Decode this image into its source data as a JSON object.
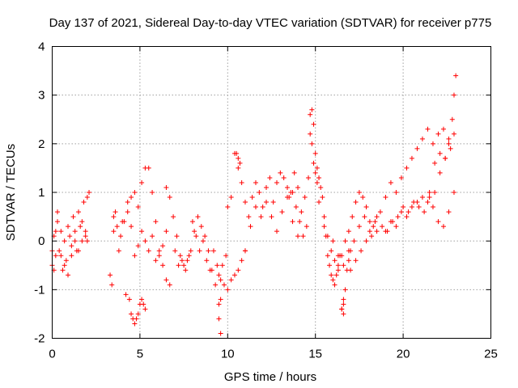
{
  "chart_data": {
    "type": "scatter",
    "title": "Day 137 of 2021, Sidereal Day-to-day VTEC variation (SDTVAR) for receiver p775",
    "xlabel": "GPS time / hours",
    "ylabel": "SDTVAR / TECUs",
    "xlim": [
      0,
      25
    ],
    "ylim": [
      -2,
      4
    ],
    "xticks": [
      0,
      5,
      10,
      15,
      20,
      25
    ],
    "yticks": [
      -2,
      -1,
      0,
      1,
      2,
      3,
      4
    ],
    "grid": true,
    "marker": "plus",
    "color": "#ff0000",
    "series": [
      {
        "name": "SDTVAR",
        "x": [
          0.0,
          0.1,
          0.2,
          0.3,
          0.4,
          0.5,
          0.6,
          0.7,
          0.8,
          0.9,
          1.0,
          1.1,
          1.2,
          1.3,
          1.4,
          1.5,
          1.6,
          1.7,
          1.8,
          1.9,
          2.0,
          2.1,
          0.0,
          0.1,
          0.2,
          0.3,
          0.5,
          0.7,
          0.9,
          1.1,
          1.3,
          1.5,
          1.7,
          1.9,
          2.0,
          3.3,
          3.4,
          3.5,
          3.6,
          3.8,
          4.0,
          4.2,
          4.4,
          4.5,
          4.6,
          4.7,
          4.8,
          4.9,
          5.0,
          5.1,
          5.2,
          5.3,
          3.5,
          3.7,
          3.9,
          4.1,
          4.3,
          4.5,
          4.7,
          4.9,
          5.1,
          5.3,
          5.5,
          5.7,
          5.9,
          6.1,
          6.3,
          6.5,
          6.7,
          4.3,
          4.5,
          4.7,
          4.9,
          5.1,
          5.3,
          5.5,
          5.7,
          5.9,
          6.1,
          6.3,
          6.5,
          6.5,
          6.7,
          6.9,
          7.1,
          7.3,
          7.5,
          7.7,
          7.9,
          8.1,
          8.3,
          8.5,
          8.7,
          8.9,
          9.1,
          9.3,
          9.5,
          9.7,
          9.9,
          7.0,
          7.2,
          7.4,
          7.6,
          7.8,
          8.0,
          8.2,
          8.4,
          8.6,
          8.8,
          9.0,
          9.2,
          9.4,
          9.6,
          9.8,
          10.0,
          10.2,
          10.4,
          10.6,
          10.8,
          11.0,
          9.5,
          9.5,
          9.6,
          9.6,
          10.0,
          10.2,
          10.4,
          10.6,
          10.8,
          11.0,
          11.2,
          11.4,
          11.6,
          11.8,
          12.0,
          12.2,
          12.4,
          12.6,
          12.8,
          13.0,
          13.2,
          13.4,
          13.6,
          13.8,
          14.0,
          14.2,
          14.4,
          14.6,
          10.5,
          10.6,
          10.7,
          11.0,
          11.3,
          11.6,
          11.9,
          12.2,
          12.5,
          12.8,
          13.1,
          13.4,
          13.7,
          14.0,
          13.5,
          13.7,
          13.9,
          14.1,
          14.3,
          14.5,
          14.7,
          14.8,
          14.9,
          15.0,
          15.1,
          15.2,
          15.3,
          15.4,
          15.5,
          15.6,
          15.7,
          15.8,
          15.9,
          16.0,
          16.1,
          16.2,
          16.3,
          16.4,
          16.5,
          16.6,
          16.7,
          16.8,
          16.9,
          17.0,
          14.7,
          14.8,
          14.9,
          15.0,
          15.1,
          15.2,
          15.5,
          15.7,
          15.9,
          16.1,
          16.3,
          16.5,
          16.7,
          16.9,
          17.1,
          17.3,
          17.5,
          17.7,
          17.9,
          18.1,
          18.3,
          18.5,
          16.5,
          16.6,
          16.6,
          16.0,
          16.3,
          16.6,
          16.9,
          17.2,
          17.5,
          17.8,
          18.1,
          18.4,
          18.7,
          19.0,
          19.3,
          19.6,
          19.9,
          20.2,
          20.5,
          20.8,
          21.1,
          21.4,
          21.7,
          22.0,
          22.3,
          22.6,
          17.0,
          17.3,
          17.6,
          17.9,
          18.2,
          18.5,
          18.8,
          19.1,
          19.4,
          19.7,
          20.0,
          20.3,
          20.6,
          20.9,
          21.2,
          21.5,
          21.8,
          22.1,
          22.4,
          22.7,
          22.9,
          19.0,
          19.3,
          19.6,
          19.9,
          20.2,
          20.5,
          20.8,
          21.1,
          21.4,
          21.7,
          22.0,
          22.3,
          22.6,
          22.9,
          21.5,
          21.8,
          22.1,
          22.4,
          22.6,
          22.8,
          22.9,
          23.0
        ],
        "y": [
          -0.5,
          0.1,
          -0.3,
          0.4,
          -0.2,
          0.2,
          -0.6,
          0.0,
          -0.4,
          0.3,
          0.1,
          -0.1,
          0.5,
          0.2,
          -0.2,
          0.6,
          0.3,
          0.0,
          0.8,
          0.2,
          0.9,
          1.0,
          -0.2,
          -0.6,
          0.2,
          0.6,
          -0.3,
          -0.5,
          -0.7,
          -0.3,
          0.0,
          -0.2,
          0.4,
          0.1,
          0.0,
          -0.7,
          -0.9,
          0.2,
          0.6,
          -0.2,
          0.4,
          -1.1,
          -1.2,
          -1.5,
          -1.6,
          -1.7,
          -1.6,
          -1.5,
          -1.3,
          -1.2,
          -1.3,
          -1.4,
          0.5,
          0.3,
          0.1,
          0.4,
          0.6,
          0.9,
          1.0,
          0.7,
          1.2,
          1.5,
          1.5,
          1.0,
          0.4,
          -0.2,
          -0.5,
          -0.8,
          -0.9,
          0.8,
          0.3,
          -0.3,
          -0.1,
          0.2,
          0.0,
          -0.2,
          0.1,
          -0.4,
          -0.3,
          -0.1,
          0.2,
          1.1,
          0.9,
          0.5,
          0.1,
          -0.3,
          -0.5,
          -0.4,
          -0.2,
          0.2,
          0.5,
          0.3,
          0.1,
          -0.2,
          -0.6,
          -0.9,
          -0.7,
          -0.5,
          -0.3,
          -0.2,
          -0.5,
          -0.4,
          -0.6,
          -0.3,
          0.4,
          0.1,
          -0.2,
          0.0,
          -0.4,
          -0.6,
          -0.2,
          -0.5,
          -0.8,
          -0.9,
          -1.0,
          -0.8,
          -0.7,
          -0.6,
          -0.4,
          -0.2,
          -1.3,
          -1.6,
          -1.9,
          -1.2,
          0.7,
          0.9,
          1.8,
          1.5,
          1.2,
          0.8,
          0.5,
          0.9,
          1.2,
          1.0,
          0.7,
          1.1,
          1.3,
          0.8,
          1.2,
          1.4,
          1.3,
          1.1,
          1.0,
          1.4,
          1.1,
          0.6,
          0.9,
          1.3,
          1.8,
          1.7,
          1.6,
          -0.2,
          0.3,
          0.7,
          0.5,
          0.8,
          0.5,
          0.2,
          0.6,
          0.9,
          0.4,
          0.1,
          0.9,
          1.0,
          0.7,
          0.4,
          0.1,
          0.3,
          2.6,
          2.7,
          2.4,
          1.8,
          1.5,
          1.3,
          1.1,
          0.9,
          0.5,
          0.1,
          -0.3,
          -0.5,
          -0.7,
          -0.8,
          -0.9,
          -0.7,
          -0.5,
          -0.3,
          -1.4,
          -1.3,
          -1.0,
          -0.6,
          -0.4,
          -0.2,
          2.2,
          2.0,
          1.6,
          1.4,
          1.2,
          0.8,
          0.3,
          0.1,
          -0.2,
          -0.4,
          -0.6,
          -0.3,
          0.0,
          0.2,
          0.5,
          0.8,
          1.0,
          0.9,
          0.7,
          0.4,
          0.3,
          0.5,
          -1.4,
          -1.5,
          -1.2,
          0.0,
          -0.3,
          -0.5,
          -0.2,
          0.0,
          0.3,
          0.5,
          0.2,
          0.4,
          0.6,
          0.9,
          1.2,
          1.0,
          1.3,
          1.5,
          1.7,
          1.9,
          2.1,
          2.3,
          2.0,
          2.2,
          2.3,
          2.1,
          -0.6,
          -0.4,
          -0.2,
          0.0,
          0.1,
          0.2,
          0.3,
          0.2,
          0.4,
          0.5,
          0.7,
          0.6,
          0.8,
          0.7,
          0.6,
          0.9,
          1.0,
          1.4,
          1.7,
          1.9,
          2.2,
          0.2,
          0.4,
          0.3,
          0.6,
          0.5,
          0.7,
          0.8,
          0.9,
          0.8,
          0.7,
          0.4,
          0.3,
          0.6,
          1.0,
          1.0,
          1.6,
          1.8,
          1.7,
          2.0,
          2.5,
          3.0,
          3.4
        ]
      }
    ]
  }
}
